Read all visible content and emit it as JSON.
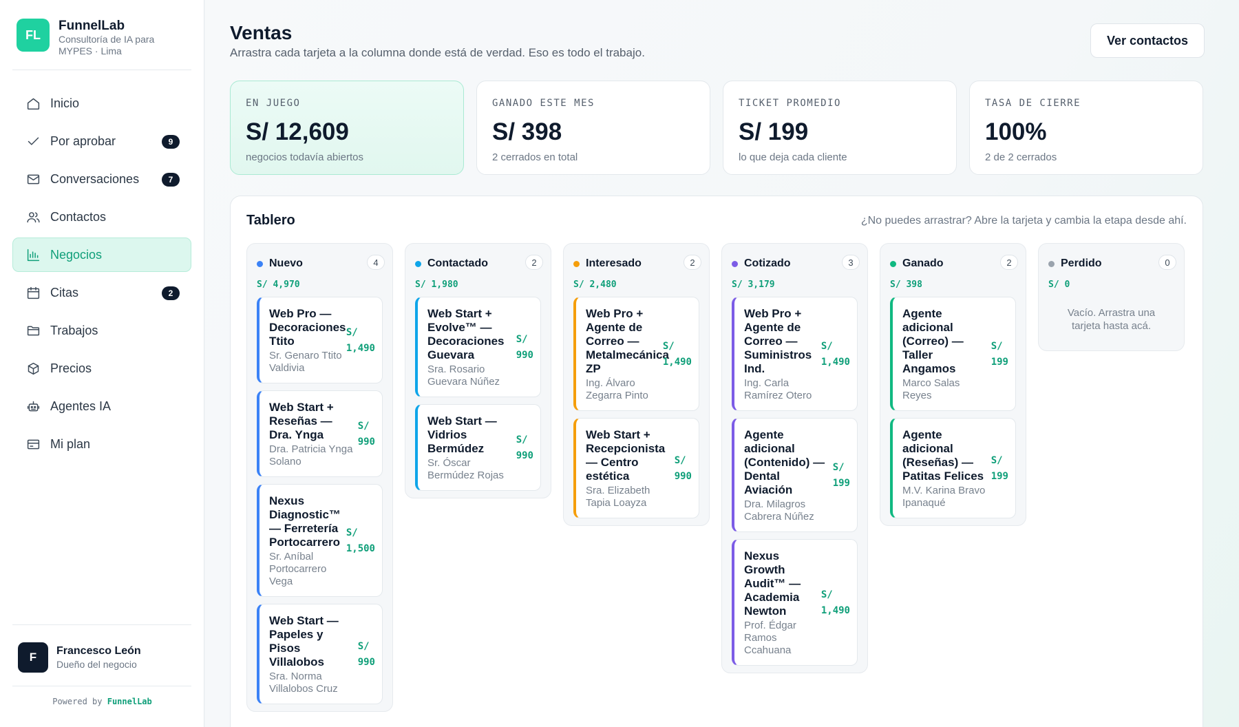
{
  "brand": {
    "initials": "FL",
    "name": "FunnelLab",
    "subtitle": "Consultoría de IA para MYPES · Lima"
  },
  "nav": [
    {
      "label": "Inicio",
      "icon": "home-icon",
      "badge": ""
    },
    {
      "label": "Por aprobar",
      "icon": "check-icon",
      "badge": "9"
    },
    {
      "label": "Conversaciones",
      "icon": "mail-icon",
      "badge": "7"
    },
    {
      "label": "Contactos",
      "icon": "users-icon",
      "badge": ""
    },
    {
      "label": "Negocios",
      "icon": "bar-chart-icon",
      "badge": "",
      "active": true
    },
    {
      "label": "Citas",
      "icon": "calendar-icon",
      "badge": "2"
    },
    {
      "label": "Trabajos",
      "icon": "folder-icon",
      "badge": ""
    },
    {
      "label": "Precios",
      "icon": "box-icon",
      "badge": ""
    },
    {
      "label": "Agentes IA",
      "icon": "robot-icon",
      "badge": ""
    },
    {
      "label": "Mi plan",
      "icon": "credit-card-icon",
      "badge": ""
    }
  ],
  "user": {
    "initial": "F",
    "name": "Francesco León",
    "role": "Dueño del negocio"
  },
  "powered": {
    "prefix": "Powered by",
    "name": "FunnelLab"
  },
  "header": {
    "title": "Ventas",
    "subtitle": "Arrastra cada tarjeta a la columna donde está de verdad. Eso es todo el trabajo.",
    "button": "Ver contactos"
  },
  "kpis": [
    {
      "label": "EN JUEGO",
      "value": "S/ 12,609",
      "note": "negocios todavía abiertos"
    },
    {
      "label": "GANADO ESTE MES",
      "value": "S/ 398",
      "note": "2 cerrados en total"
    },
    {
      "label": "TICKET PROMEDIO",
      "value": "S/ 199",
      "note": "lo que deja cada cliente"
    },
    {
      "label": "TASA DE CIERRE",
      "value": "100%",
      "note": "2 de 2 cerrados"
    }
  ],
  "board": {
    "title": "Tablero",
    "hint": "¿No puedes arrastrar? Abre la tarjeta y cambia la etapa desde ahí.",
    "columns": [
      {
        "name": "Nuevo",
        "count": "4",
        "total": "S/ 4,970",
        "color": "#3b82f6",
        "cards": [
          {
            "title": "Web Pro — Decoraciones Ttito",
            "contact": "Sr. Genaro Ttito Valdivia",
            "amount_cur": "S/",
            "amount": "1,490"
          },
          {
            "title": "Web Start + Reseñas — Dra. Ynga",
            "contact": "Dra. Patricia Ynga Solano",
            "amount_cur": "S/",
            "amount": "990"
          },
          {
            "title": "Nexus Diagnostic™ — Ferretería Portocarrero",
            "contact": "Sr. Aníbal Portocarrero Vega",
            "amount_cur": "S/",
            "amount": "1,500"
          },
          {
            "title": "Web Start — Papeles y Pisos Villalobos",
            "contact": "Sra. Norma Villalobos Cruz",
            "amount_cur": "S/",
            "amount": "990"
          }
        ]
      },
      {
        "name": "Contactado",
        "count": "2",
        "total": "S/ 1,980",
        "color": "#0ea5e9",
        "cards": [
          {
            "title": "Web Start + Evolve™ — Decoraciones Guevara",
            "contact": "Sra. Rosario Guevara Núñez",
            "amount_cur": "S/",
            "amount": "990"
          },
          {
            "title": "Web Start — Vidrios Bermúdez",
            "contact": "Sr. Óscar Bermúdez Rojas",
            "amount_cur": "S/",
            "amount": "990"
          }
        ]
      },
      {
        "name": "Interesado",
        "count": "2",
        "total": "S/ 2,480",
        "color": "#f59e0b",
        "cards": [
          {
            "title": "Web Pro + Agente de Correo — Metalmecánica ZP",
            "contact": "Ing. Álvaro Zegarra Pinto",
            "amount_cur": "S/",
            "amount": "1,490"
          },
          {
            "title": "Web Start + Recepcionista — Centro estética",
            "contact": "Sra. Elizabeth Tapia Loayza",
            "amount_cur": "S/",
            "amount": "990"
          }
        ]
      },
      {
        "name": "Cotizado",
        "count": "3",
        "total": "S/ 3,179",
        "color": "#7c5ce6",
        "cards": [
          {
            "title": "Web Pro + Agente de Correo — Suministros Ind.",
            "contact": "Ing. Carla Ramírez Otero",
            "amount_cur": "S/",
            "amount": "1,490"
          },
          {
            "title": "Agente adicional (Contenido) — Dental Aviación",
            "contact": "Dra. Milagros Cabrera Núñez",
            "amount_cur": "S/",
            "amount": "199"
          },
          {
            "title": "Nexus Growth Audit™ — Academia Newton",
            "contact": "Prof. Édgar Ramos Ccahuana",
            "amount_cur": "S/",
            "amount": "1,490"
          }
        ]
      },
      {
        "name": "Ganado",
        "count": "2",
        "total": "S/ 398",
        "color": "#10b981",
        "cards": [
          {
            "title": "Agente adicional (Correo) — Taller Angamos",
            "contact": "Marco Salas Reyes",
            "amount_cur": "S/",
            "amount": "199"
          },
          {
            "title": "Agente adicional (Reseñas) — Patitas Felices",
            "contact": "M.V. Karina Bravo Ipanaqué",
            "amount_cur": "S/",
            "amount": "199"
          }
        ]
      },
      {
        "name": "Perdido",
        "count": "0",
        "total": "S/ 0",
        "color": "#9aa3ad",
        "cards": [],
        "empty": "Vacío. Arrastra una tarjeta hasta acá."
      }
    ]
  }
}
